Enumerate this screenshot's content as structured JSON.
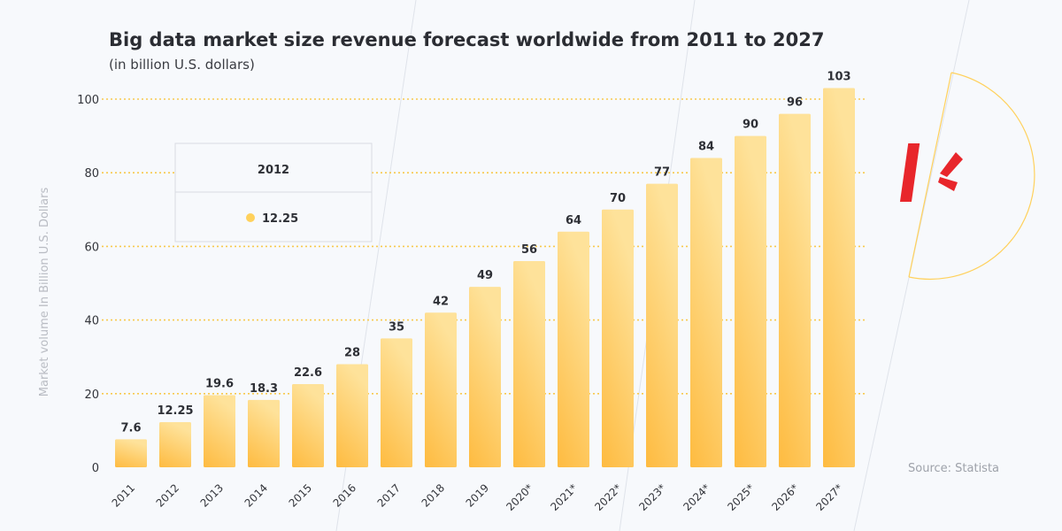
{
  "colors": {
    "bar_top": "#fee29a",
    "bar_bottom": "#febb40",
    "grid": "#f8c94e",
    "accent": "#ffd15c",
    "logo_red": "#e8262b"
  },
  "tooltip": {
    "category": "2012",
    "value": "12.25"
  },
  "source": "Source: Statista",
  "chart_data": {
    "type": "bar",
    "title": "Big data market size revenue forecast worldwide from 2011 to 2027",
    "subtitle": "(in billion U.S. dollars)",
    "xlabel": "",
    "ylabel": "Market volume In Billion U.S. Dollars",
    "ylim": [
      0,
      100
    ],
    "yticks": [
      0,
      20,
      40,
      60,
      80,
      100
    ],
    "grid": true,
    "categories": [
      "2011",
      "2012",
      "2013",
      "2014",
      "2015",
      "2016",
      "2017",
      "2018",
      "2019",
      "2020*",
      "2021*",
      "2022*",
      "2023*",
      "2024*",
      "2025*",
      "2026*",
      "2027*"
    ],
    "values": [
      7.6,
      12.25,
      19.6,
      18.3,
      22.6,
      28,
      35,
      42,
      49,
      56,
      64,
      70,
      77,
      84,
      90,
      96,
      103
    ],
    "labels": [
      "7.6",
      "12.25",
      "19.6",
      "18.3",
      "22.6",
      "28",
      "35",
      "42",
      "49",
      "56",
      "64",
      "70",
      "77",
      "84",
      "90",
      "96",
      "103"
    ]
  }
}
